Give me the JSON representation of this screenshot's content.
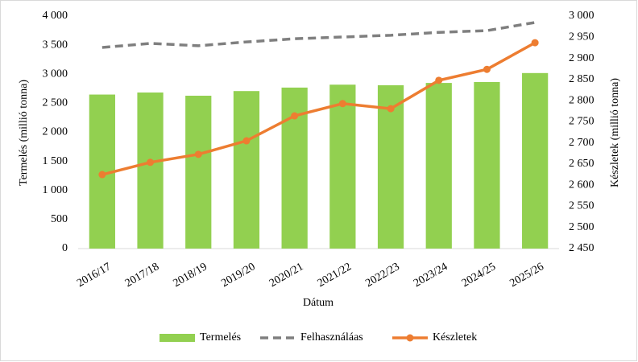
{
  "chart_data": {
    "type": "bar",
    "x_label": "Dátum",
    "y_label": "Termelés (millió tonna)",
    "y2_label": "Készletek (millió tonna)",
    "categories": [
      "2016/17",
      "2017/18",
      "2018/19",
      "2019/20",
      "2020/21",
      "2021/22",
      "2022/23",
      "2023/24",
      "2024/25",
      "2025/26"
    ],
    "series": [
      {
        "name": "Termelés",
        "type": "bar",
        "color": "#92d050",
        "values": [
          2650,
          2685,
          2630,
          2710,
          2770,
          2820,
          2810,
          2850,
          2865,
          3020
        ]
      },
      {
        "name": "Felhasználáas",
        "type": "line",
        "dashed": true,
        "color": "#7f7f7f",
        "values": [
          3460,
          3530,
          3490,
          3555,
          3610,
          3640,
          3670,
          3720,
          3750,
          3890
        ]
      },
      {
        "name": "Készletek",
        "type": "line",
        "markers": true,
        "axis": "y2",
        "color": "#ed7d31",
        "values": [
          2625,
          2654,
          2673,
          2705,
          2764,
          2793,
          2781,
          2848,
          2874,
          2937
        ]
      }
    ],
    "ylim": [
      0,
      4000
    ],
    "yticks": [
      0,
      500,
      {
        "value": 1000,
        "label": "1 000"
      },
      {
        "value": 1500,
        "label": "1 500"
      },
      {
        "value": 2000,
        "label": "2 000"
      },
      {
        "value": 2500,
        "label": "2 500"
      },
      {
        "value": 3000,
        "label": "3 000"
      },
      {
        "value": 3500,
        "label": "3 500"
      },
      {
        "value": 4000,
        "label": "4 000"
      }
    ],
    "y2lim": [
      2450,
      3000
    ],
    "y2ticks": [
      {
        "value": 2450,
        "label": "2 450"
      },
      {
        "value": 2500,
        "label": "2 500"
      },
      {
        "value": 2550,
        "label": "2 550"
      },
      {
        "value": 2600,
        "label": "2 600"
      },
      {
        "value": 2650,
        "label": "2 650"
      },
      {
        "value": 2700,
        "label": "2 700"
      },
      {
        "value": 2750,
        "label": "2 750"
      },
      {
        "value": 2800,
        "label": "2 800"
      },
      {
        "value": 2850,
        "label": "2 850"
      },
      {
        "value": 2900,
        "label": "2 900"
      },
      {
        "value": 2950,
        "label": "2 950"
      },
      {
        "value": 3000,
        "label": "3 000"
      }
    ],
    "legend": "bottom"
  }
}
